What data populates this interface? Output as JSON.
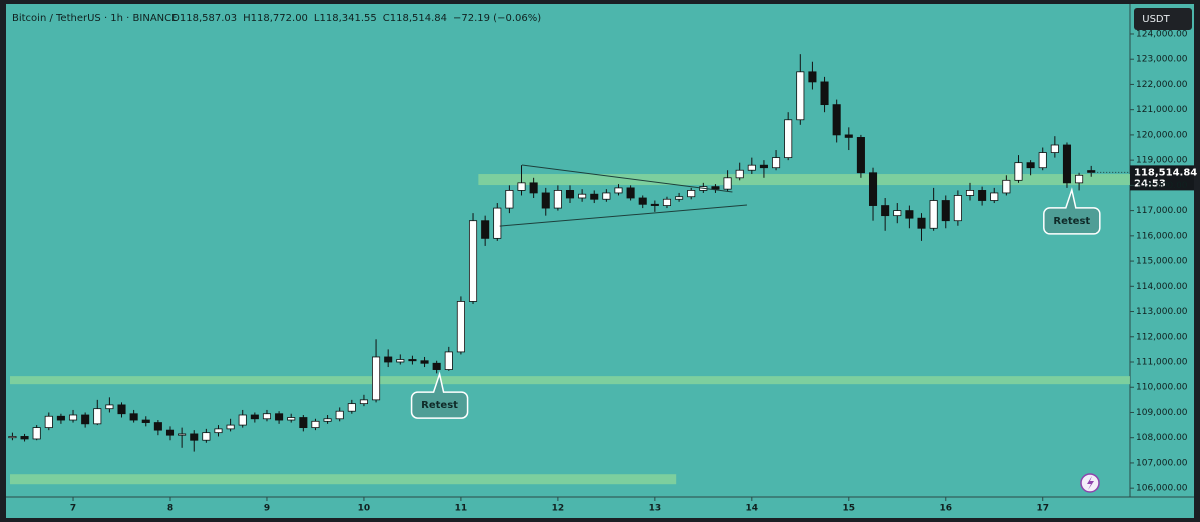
{
  "chart_data": {
    "type": "candlestick",
    "title": "Bitcoin / TetherUS · 1h · BINANCE",
    "header_values": [
      "O118,587.03",
      "H118,772.00",
      "L118,341.55",
      "C118,514.84",
      "−72.19 (−0.06%)"
    ],
    "currency": "USDT",
    "price_tag": {
      "value": 118514.84,
      "label": "118,514.84"
    },
    "countdown": "24:53",
    "background": "#4db6ac",
    "up_color": "#ffffff",
    "down_color": "#111111",
    "zone_color": "#86d49b",
    "x": [
      6.375,
      6.5,
      6.625,
      6.75,
      6.875,
      7,
      7.125,
      7.25,
      7.375,
      7.5,
      7.625,
      7.75,
      7.875,
      8,
      8.125,
      8.25,
      8.375,
      8.5,
      8.625,
      8.75,
      8.875,
      9,
      9.125,
      9.25,
      9.375,
      9.5,
      9.625,
      9.75,
      9.875,
      10,
      10.125,
      10.25,
      10.375,
      10.5,
      10.625,
      10.75,
      10.875,
      11,
      11.125,
      11.25,
      11.375,
      11.5,
      11.625,
      11.75,
      11.875,
      12,
      12.125,
      12.25,
      12.375,
      12.5,
      12.625,
      12.75,
      12.875,
      13,
      13.125,
      13.25,
      13.375,
      13.5,
      13.625,
      13.75,
      13.875,
      14,
      14.125,
      14.25,
      14.375,
      14.5,
      14.625,
      14.75,
      14.875,
      15,
      15.125,
      15.25,
      15.375,
      15.5,
      15.625,
      15.75,
      15.875,
      16,
      16.125,
      16.25,
      16.375,
      16.5,
      16.625,
      16.75,
      16.875,
      17,
      17.125,
      17.25,
      17.375,
      17.5
    ],
    "ohlc": [
      [
        108000,
        108200,
        107900,
        108050
      ],
      [
        108050,
        108150,
        107850,
        107950
      ],
      [
        107950,
        108500,
        107900,
        108400
      ],
      [
        108400,
        109000,
        108300,
        108850
      ],
      [
        108850,
        108950,
        108550,
        108700
      ],
      [
        108700,
        109100,
        108600,
        108900
      ],
      [
        108900,
        109000,
        108400,
        108550
      ],
      [
        108550,
        109500,
        108500,
        109150
      ],
      [
        109150,
        109600,
        109000,
        109300
      ],
      [
        109300,
        109400,
        108800,
        108950
      ],
      [
        108950,
        109100,
        108600,
        108700
      ],
      [
        108700,
        108850,
        108450,
        108600
      ],
      [
        108600,
        108700,
        108100,
        108300
      ],
      [
        108300,
        108450,
        107900,
        108100
      ],
      [
        108100,
        108400,
        107600,
        108150
      ],
      [
        108150,
        108300,
        107450,
        107900
      ],
      [
        107900,
        108350,
        107800,
        108200
      ],
      [
        108200,
        108500,
        108050,
        108350
      ],
      [
        108350,
        108750,
        108250,
        108500
      ],
      [
        108500,
        109100,
        108400,
        108900
      ],
      [
        108900,
        109000,
        108600,
        108750
      ],
      [
        108750,
        109100,
        108650,
        108950
      ],
      [
        108950,
        109050,
        108550,
        108700
      ],
      [
        108700,
        108950,
        108600,
        108800
      ],
      [
        108800,
        108900,
        108250,
        108400
      ],
      [
        108400,
        108750,
        108300,
        108650
      ],
      [
        108650,
        108900,
        108550,
        108750
      ],
      [
        108750,
        109200,
        108650,
        109050
      ],
      [
        109050,
        109500,
        108950,
        109350
      ],
      [
        109350,
        109700,
        109250,
        109500
      ],
      [
        109500,
        111900,
        109400,
        111200
      ],
      [
        111200,
        111500,
        110800,
        111000
      ],
      [
        111000,
        111300,
        110900,
        111100
      ],
      [
        111100,
        111250,
        110900,
        111050
      ],
      [
        111050,
        111200,
        110800,
        110950
      ],
      [
        110950,
        111050,
        110550,
        110700
      ],
      [
        110700,
        111600,
        110650,
        111400
      ],
      [
        111400,
        113600,
        111300,
        113400
      ],
      [
        113400,
        116900,
        113300,
        116600
      ],
      [
        116600,
        116800,
        115600,
        115900
      ],
      [
        115900,
        117300,
        115800,
        117100
      ],
      [
        117100,
        118000,
        116900,
        117800
      ],
      [
        117800,
        118800,
        117600,
        118100
      ],
      [
        118100,
        118300,
        117500,
        117700
      ],
      [
        117700,
        117900,
        116800,
        117100
      ],
      [
        117100,
        118000,
        117000,
        117800
      ],
      [
        117800,
        118000,
        117300,
        117500
      ],
      [
        117500,
        117850,
        117350,
        117650
      ],
      [
        117650,
        117800,
        117300,
        117450
      ],
      [
        117450,
        117850,
        117350,
        117700
      ],
      [
        117700,
        118050,
        117600,
        117900
      ],
      [
        117900,
        118000,
        117400,
        117500
      ],
      [
        117500,
        117600,
        117100,
        117250
      ],
      [
        117250,
        117400,
        116950,
        117200
      ],
      [
        117200,
        117550,
        117100,
        117450
      ],
      [
        117450,
        117700,
        117350,
        117550
      ],
      [
        117550,
        117900,
        117450,
        117800
      ],
      [
        117800,
        118100,
        117700,
        117950
      ],
      [
        117950,
        118050,
        117700,
        117850
      ],
      [
        117850,
        118600,
        117750,
        118300
      ],
      [
        118300,
        118900,
        118200,
        118600
      ],
      [
        118600,
        119100,
        118450,
        118800
      ],
      [
        118800,
        119000,
        118300,
        118700
      ],
      [
        118700,
        119400,
        118600,
        119100
      ],
      [
        119100,
        120900,
        119000,
        120600
      ],
      [
        120600,
        123200,
        120400,
        122500
      ],
      [
        122500,
        122900,
        121800,
        122100
      ],
      [
        122100,
        122300,
        120900,
        121200
      ],
      [
        121200,
        121400,
        119700,
        120000
      ],
      [
        120000,
        120300,
        119400,
        119900
      ],
      [
        119900,
        120000,
        118300,
        118500
      ],
      [
        118500,
        118700,
        116600,
        117200
      ],
      [
        117200,
        117500,
        116200,
        116800
      ],
      [
        116800,
        117300,
        116500,
        117000
      ],
      [
        117000,
        117200,
        116300,
        116700
      ],
      [
        116700,
        116900,
        115800,
        116300
      ],
      [
        116300,
        117900,
        116200,
        117400
      ],
      [
        117400,
        117600,
        116300,
        116600
      ],
      [
        116600,
        117800,
        116400,
        117600
      ],
      [
        117600,
        118100,
        117400,
        117800
      ],
      [
        117800,
        117950,
        117200,
        117400
      ],
      [
        117400,
        117900,
        117300,
        117700
      ],
      [
        117700,
        118400,
        117600,
        118200
      ],
      [
        118200,
        119200,
        118100,
        118900
      ],
      [
        118900,
        119000,
        118400,
        118700
      ],
      [
        118700,
        119500,
        118600,
        119300
      ],
      [
        119300,
        119950,
        119100,
        119600
      ],
      [
        119600,
        119700,
        117900,
        118100
      ],
      [
        118100,
        118500,
        117800,
        118400
      ],
      [
        118587.03,
        118772,
        118341.55,
        118514.84
      ]
    ],
    "xlim": [
      6.35,
      17.9
    ],
    "xticks": [
      7,
      8,
      9,
      10,
      11,
      12,
      13,
      14,
      15,
      16,
      17
    ],
    "ylim": [
      105650,
      124950
    ],
    "yticks": [
      {
        "value": 106000,
        "label": "106,000.00"
      },
      {
        "value": 107000,
        "label": "107,000.00"
      },
      {
        "value": 108000,
        "label": "108,000.00"
      },
      {
        "value": 109000,
        "label": "109,000.00"
      },
      {
        "value": 110000,
        "label": "110,000.00"
      },
      {
        "value": 111000,
        "label": "111,000.00"
      },
      {
        "value": 112000,
        "label": "112,000.00"
      },
      {
        "value": 113000,
        "label": "113,000.00"
      },
      {
        "value": 114000,
        "label": "114,000.00"
      },
      {
        "value": 115000,
        "label": "115,000.00"
      },
      {
        "value": 116000,
        "label": "116,000.00"
      },
      {
        "value": 117000,
        "label": "117,000.00"
      },
      {
        "value": 118000,
        "label": "118,000.00"
      },
      {
        "value": 119000,
        "label": "119,000.00"
      },
      {
        "value": 120000,
        "label": "120,000.00"
      },
      {
        "value": 121000,
        "label": "121,000.00"
      },
      {
        "value": 122000,
        "label": "122,000.00"
      },
      {
        "value": 123000,
        "label": "123,000.00"
      },
      {
        "value": 124000,
        "label": "124,000.00"
      }
    ],
    "zones": [
      {
        "low": 118013,
        "high": 118449,
        "x_start": 11.18,
        "x_end": 17.9
      },
      {
        "low": 110122,
        "high": 110440,
        "x_start": 6.35,
        "x_end": 17.9
      },
      {
        "low": 106157,
        "high": 106553,
        "x_start": 6.35,
        "x_end": 13.22
      }
    ],
    "trendlines": [
      {
        "x": [
          11.63,
          13.8
        ],
        "y": [
          118806,
          117735
        ]
      },
      {
        "x": [
          11.4,
          13.95
        ],
        "y": [
          116387,
          117220
        ]
      }
    ],
    "annotations": [
      {
        "text": "Retest",
        "x": 10.78,
        "y": 110600
      },
      {
        "text": "Retest",
        "x": 17.3,
        "y": 117900
      }
    ]
  }
}
